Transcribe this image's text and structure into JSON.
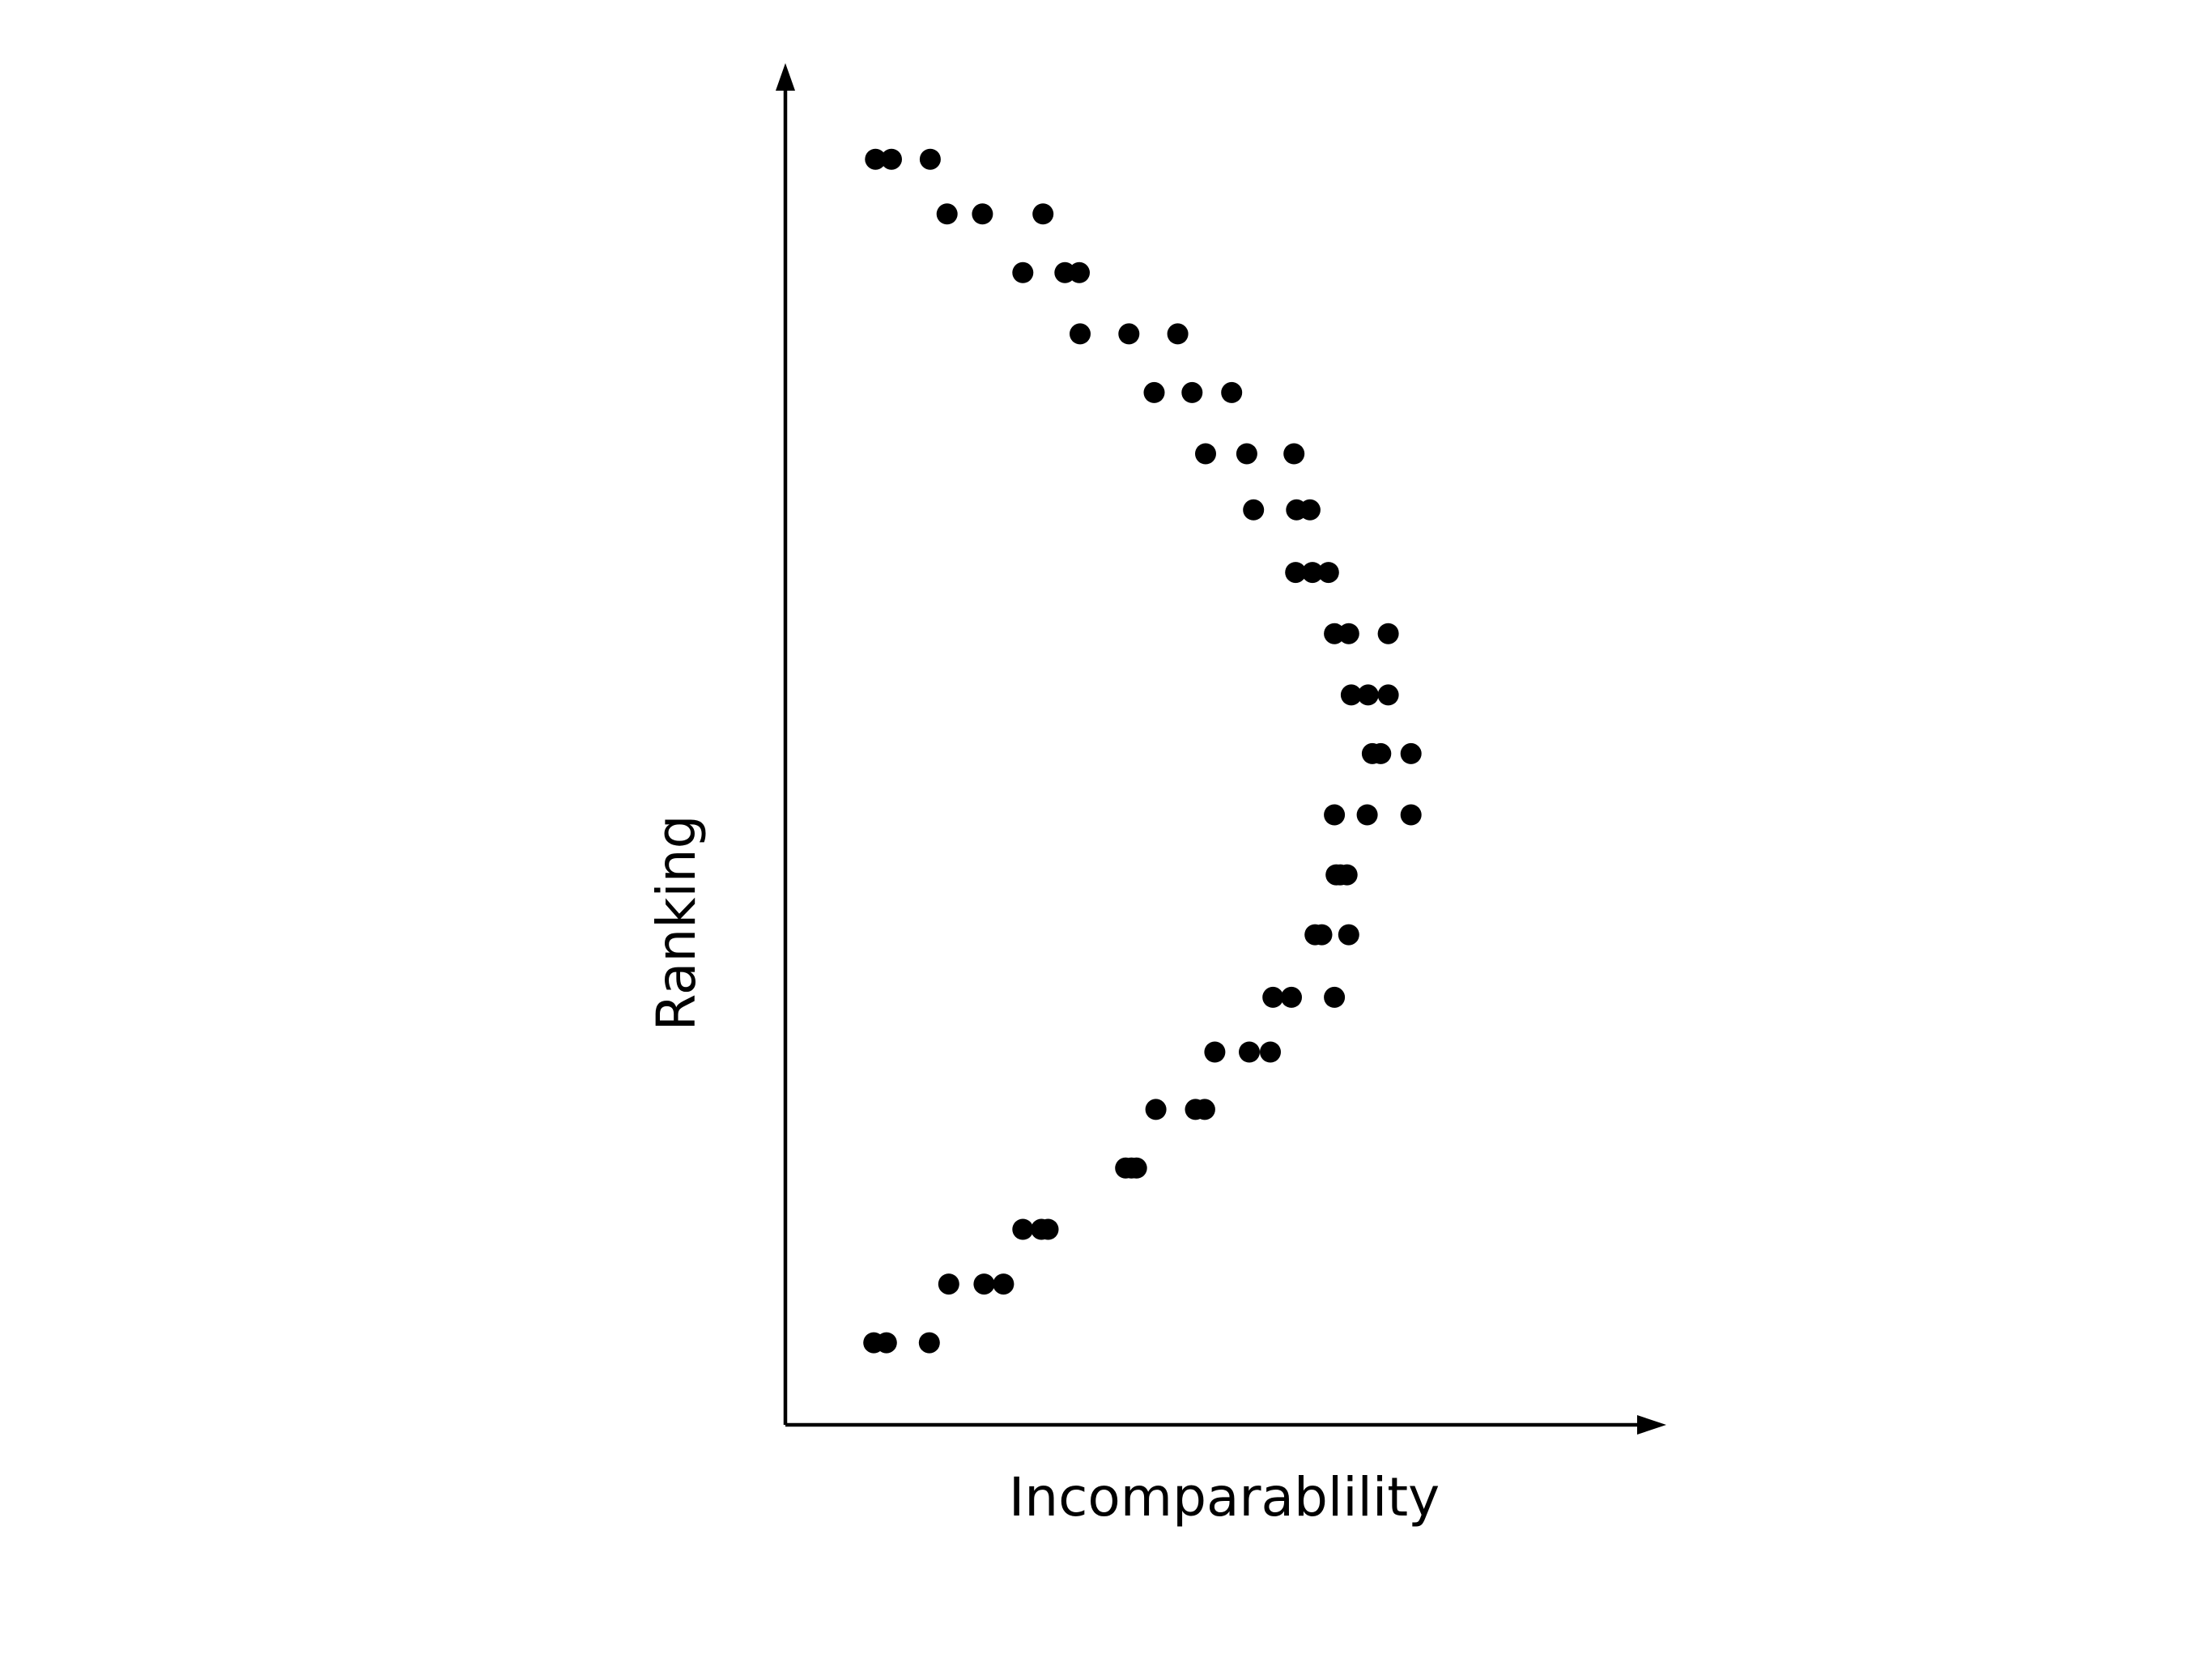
{
  "chart_data": {
    "type": "scatter",
    "title": "",
    "xlabel": "Incomparablility",
    "ylabel": "Ranking",
    "xlim": [
      0,
      100
    ],
    "ylim": [
      0,
      100
    ],
    "grid": false,
    "legend": "none",
    "marker_color": "#000000",
    "series": [
      {
        "points": [
          {
            "x": 10.7,
            "y": 97.1
          },
          {
            "x": 12.6,
            "y": 97.1
          },
          {
            "x": 17.2,
            "y": 97.1
          },
          {
            "x": 19.2,
            "y": 92.9
          },
          {
            "x": 23.4,
            "y": 92.9
          },
          {
            "x": 30.6,
            "y": 92.9
          },
          {
            "x": 28.2,
            "y": 88.4
          },
          {
            "x": 33.2,
            "y": 88.4
          },
          {
            "x": 34.9,
            "y": 88.4
          },
          {
            "x": 35.0,
            "y": 83.7
          },
          {
            "x": 40.8,
            "y": 83.7
          },
          {
            "x": 46.6,
            "y": 83.7
          },
          {
            "x": 43.8,
            "y": 79.2
          },
          {
            "x": 48.3,
            "y": 79.2
          },
          {
            "x": 53.0,
            "y": 79.2
          },
          {
            "x": 49.9,
            "y": 74.5
          },
          {
            "x": 54.8,
            "y": 74.5
          },
          {
            "x": 60.4,
            "y": 74.5
          },
          {
            "x": 55.6,
            "y": 70.2
          },
          {
            "x": 60.7,
            "y": 70.2
          },
          {
            "x": 62.3,
            "y": 70.2
          },
          {
            "x": 60.6,
            "y": 65.4
          },
          {
            "x": 62.6,
            "y": 65.4
          },
          {
            "x": 64.5,
            "y": 65.4
          },
          {
            "x": 65.2,
            "y": 60.7
          },
          {
            "x": 66.9,
            "y": 60.7
          },
          {
            "x": 71.6,
            "y": 60.7
          },
          {
            "x": 67.2,
            "y": 56.0
          },
          {
            "x": 69.2,
            "y": 56.0
          },
          {
            "x": 71.6,
            "y": 56.0
          },
          {
            "x": 69.7,
            "y": 51.5
          },
          {
            "x": 70.7,
            "y": 51.5
          },
          {
            "x": 74.3,
            "y": 51.5
          },
          {
            "x": 65.2,
            "y": 46.8
          },
          {
            "x": 69.1,
            "y": 46.8
          },
          {
            "x": 74.3,
            "y": 46.8
          },
          {
            "x": 65.4,
            "y": 42.2
          },
          {
            "x": 66.7,
            "y": 42.2
          },
          {
            "x": 65.9,
            "y": 42.2
          },
          {
            "x": 62.9,
            "y": 37.6
          },
          {
            "x": 63.7,
            "y": 37.6
          },
          {
            "x": 66.9,
            "y": 37.6
          },
          {
            "x": 57.9,
            "y": 32.8
          },
          {
            "x": 60.1,
            "y": 32.8
          },
          {
            "x": 65.2,
            "y": 32.8
          },
          {
            "x": 51.0,
            "y": 28.6
          },
          {
            "x": 55.1,
            "y": 28.6
          },
          {
            "x": 57.6,
            "y": 28.6
          },
          {
            "x": 44.0,
            "y": 24.2
          },
          {
            "x": 48.7,
            "y": 24.2
          },
          {
            "x": 49.8,
            "y": 24.2
          },
          {
            "x": 40.4,
            "y": 19.7
          },
          {
            "x": 41.7,
            "y": 19.7
          },
          {
            "x": 41.1,
            "y": 19.7
          },
          {
            "x": 28.2,
            "y": 15.0
          },
          {
            "x": 30.4,
            "y": 15.0
          },
          {
            "x": 31.2,
            "y": 15.0
          },
          {
            "x": 19.4,
            "y": 10.8
          },
          {
            "x": 23.6,
            "y": 10.8
          },
          {
            "x": 25.9,
            "y": 10.8
          },
          {
            "x": 10.5,
            "y": 6.3
          },
          {
            "x": 12.0,
            "y": 6.3
          },
          {
            "x": 17.1,
            "y": 6.3
          }
        ]
      }
    ]
  }
}
